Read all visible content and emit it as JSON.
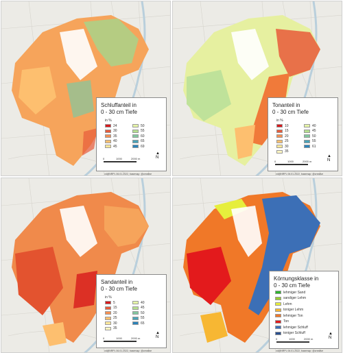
{
  "panels": [
    {
      "id": "schluff",
      "title_line1": "Schluffanteil in",
      "title_line2": "0 - 30 cm Tiefe",
      "unit": "in %",
      "classes_left": [
        {
          "label": "24",
          "color": "#d7191c"
        },
        {
          "label": "30",
          "color": "#e85b3a"
        },
        {
          "label": "35",
          "color": "#f69053"
        },
        {
          "label": "40",
          "color": "#fdbf6f"
        },
        {
          "label": "45",
          "color": "#fee89a"
        }
      ],
      "classes_right": [
        {
          "label": "50",
          "color": "#e6f5a8"
        },
        {
          "label": "55",
          "color": "#b6df8f"
        },
        {
          "label": "60",
          "color": "#83c79f"
        },
        {
          "label": "65",
          "color": "#4aa3b8"
        },
        {
          "label": "69",
          "color": "#2b83ba"
        }
      ],
      "scale": [
        "0",
        "1000",
        "2000 m"
      ],
      "credit": "vd@NRPL 06.01.2022, basemap: @creative"
    },
    {
      "id": "ton",
      "title_line1": "Tonanteil in",
      "title_line2": "0 - 30 cm Tiefe",
      "unit": "in %",
      "classes_left": [
        {
          "label": "10",
          "color": "#d7191c"
        },
        {
          "label": "15",
          "color": "#e85b3a"
        },
        {
          "label": "20",
          "color": "#f69053"
        },
        {
          "label": "25",
          "color": "#fdbf6f"
        },
        {
          "label": "30",
          "color": "#fee89a"
        },
        {
          "label": "35",
          "color": "#fff6c2"
        }
      ],
      "classes_right": [
        {
          "label": "40",
          "color": "#e6f5a8"
        },
        {
          "label": "45",
          "color": "#b6df8f"
        },
        {
          "label": "50",
          "color": "#83c79f"
        },
        {
          "label": "55",
          "color": "#4aa3b8"
        },
        {
          "label": "61",
          "color": "#2b83ba"
        }
      ],
      "scale": [
        "0",
        "1000",
        "2000 m"
      ],
      "credit": "vd@NRPL 06.01.2022, basemap: @creative"
    },
    {
      "id": "sand",
      "title_line1": "Sandanteil in",
      "title_line2": "0 - 30 cm Tiefe",
      "unit": "in %",
      "classes_left": [
        {
          "label": "5",
          "color": "#d7191c"
        },
        {
          "label": "15",
          "color": "#e85b3a"
        },
        {
          "label": "20",
          "color": "#f69053"
        },
        {
          "label": "25",
          "color": "#fdbf6f"
        },
        {
          "label": "30",
          "color": "#fee89a"
        },
        {
          "label": "35",
          "color": "#fff6c2"
        }
      ],
      "classes_right": [
        {
          "label": "40",
          "color": "#e6f5a8"
        },
        {
          "label": "45",
          "color": "#b6df8f"
        },
        {
          "label": "50",
          "color": "#83c79f"
        },
        {
          "label": "55",
          "color": "#4aa3b8"
        },
        {
          "label": "65",
          "color": "#2b83ba"
        }
      ],
      "scale": [
        "0",
        "1000",
        "2000 m"
      ],
      "credit": "vd@NRPL 06.01.2022, basemap: @creative"
    },
    {
      "id": "koernung",
      "title_line1": "Körnungsklasse in",
      "title_line2": "0 - 30 cm Tiefe",
      "classes": [
        {
          "label": "lehmiger Sand",
          "color": "#2db52d"
        },
        {
          "label": "sandiger Lehm",
          "color": "#9acd32"
        },
        {
          "label": "Lehm",
          "color": "#e6ee3c"
        },
        {
          "label": "toniger Lehm",
          "color": "#f7b733"
        },
        {
          "label": "lehmiger Ton",
          "color": "#f07828"
        },
        {
          "label": "Ton",
          "color": "#e31a1c"
        },
        {
          "label": "lehmiger Schluff",
          "color": "#3c6fb6"
        },
        {
          "label": "toniger Schluff",
          "color": "#2a4f8f"
        }
      ],
      "scale": [
        "0",
        "1000",
        "2000 m"
      ],
      "credit": "vd@NRPL 06.01.2022, basemap: @creative"
    }
  ],
  "north_label": "N"
}
